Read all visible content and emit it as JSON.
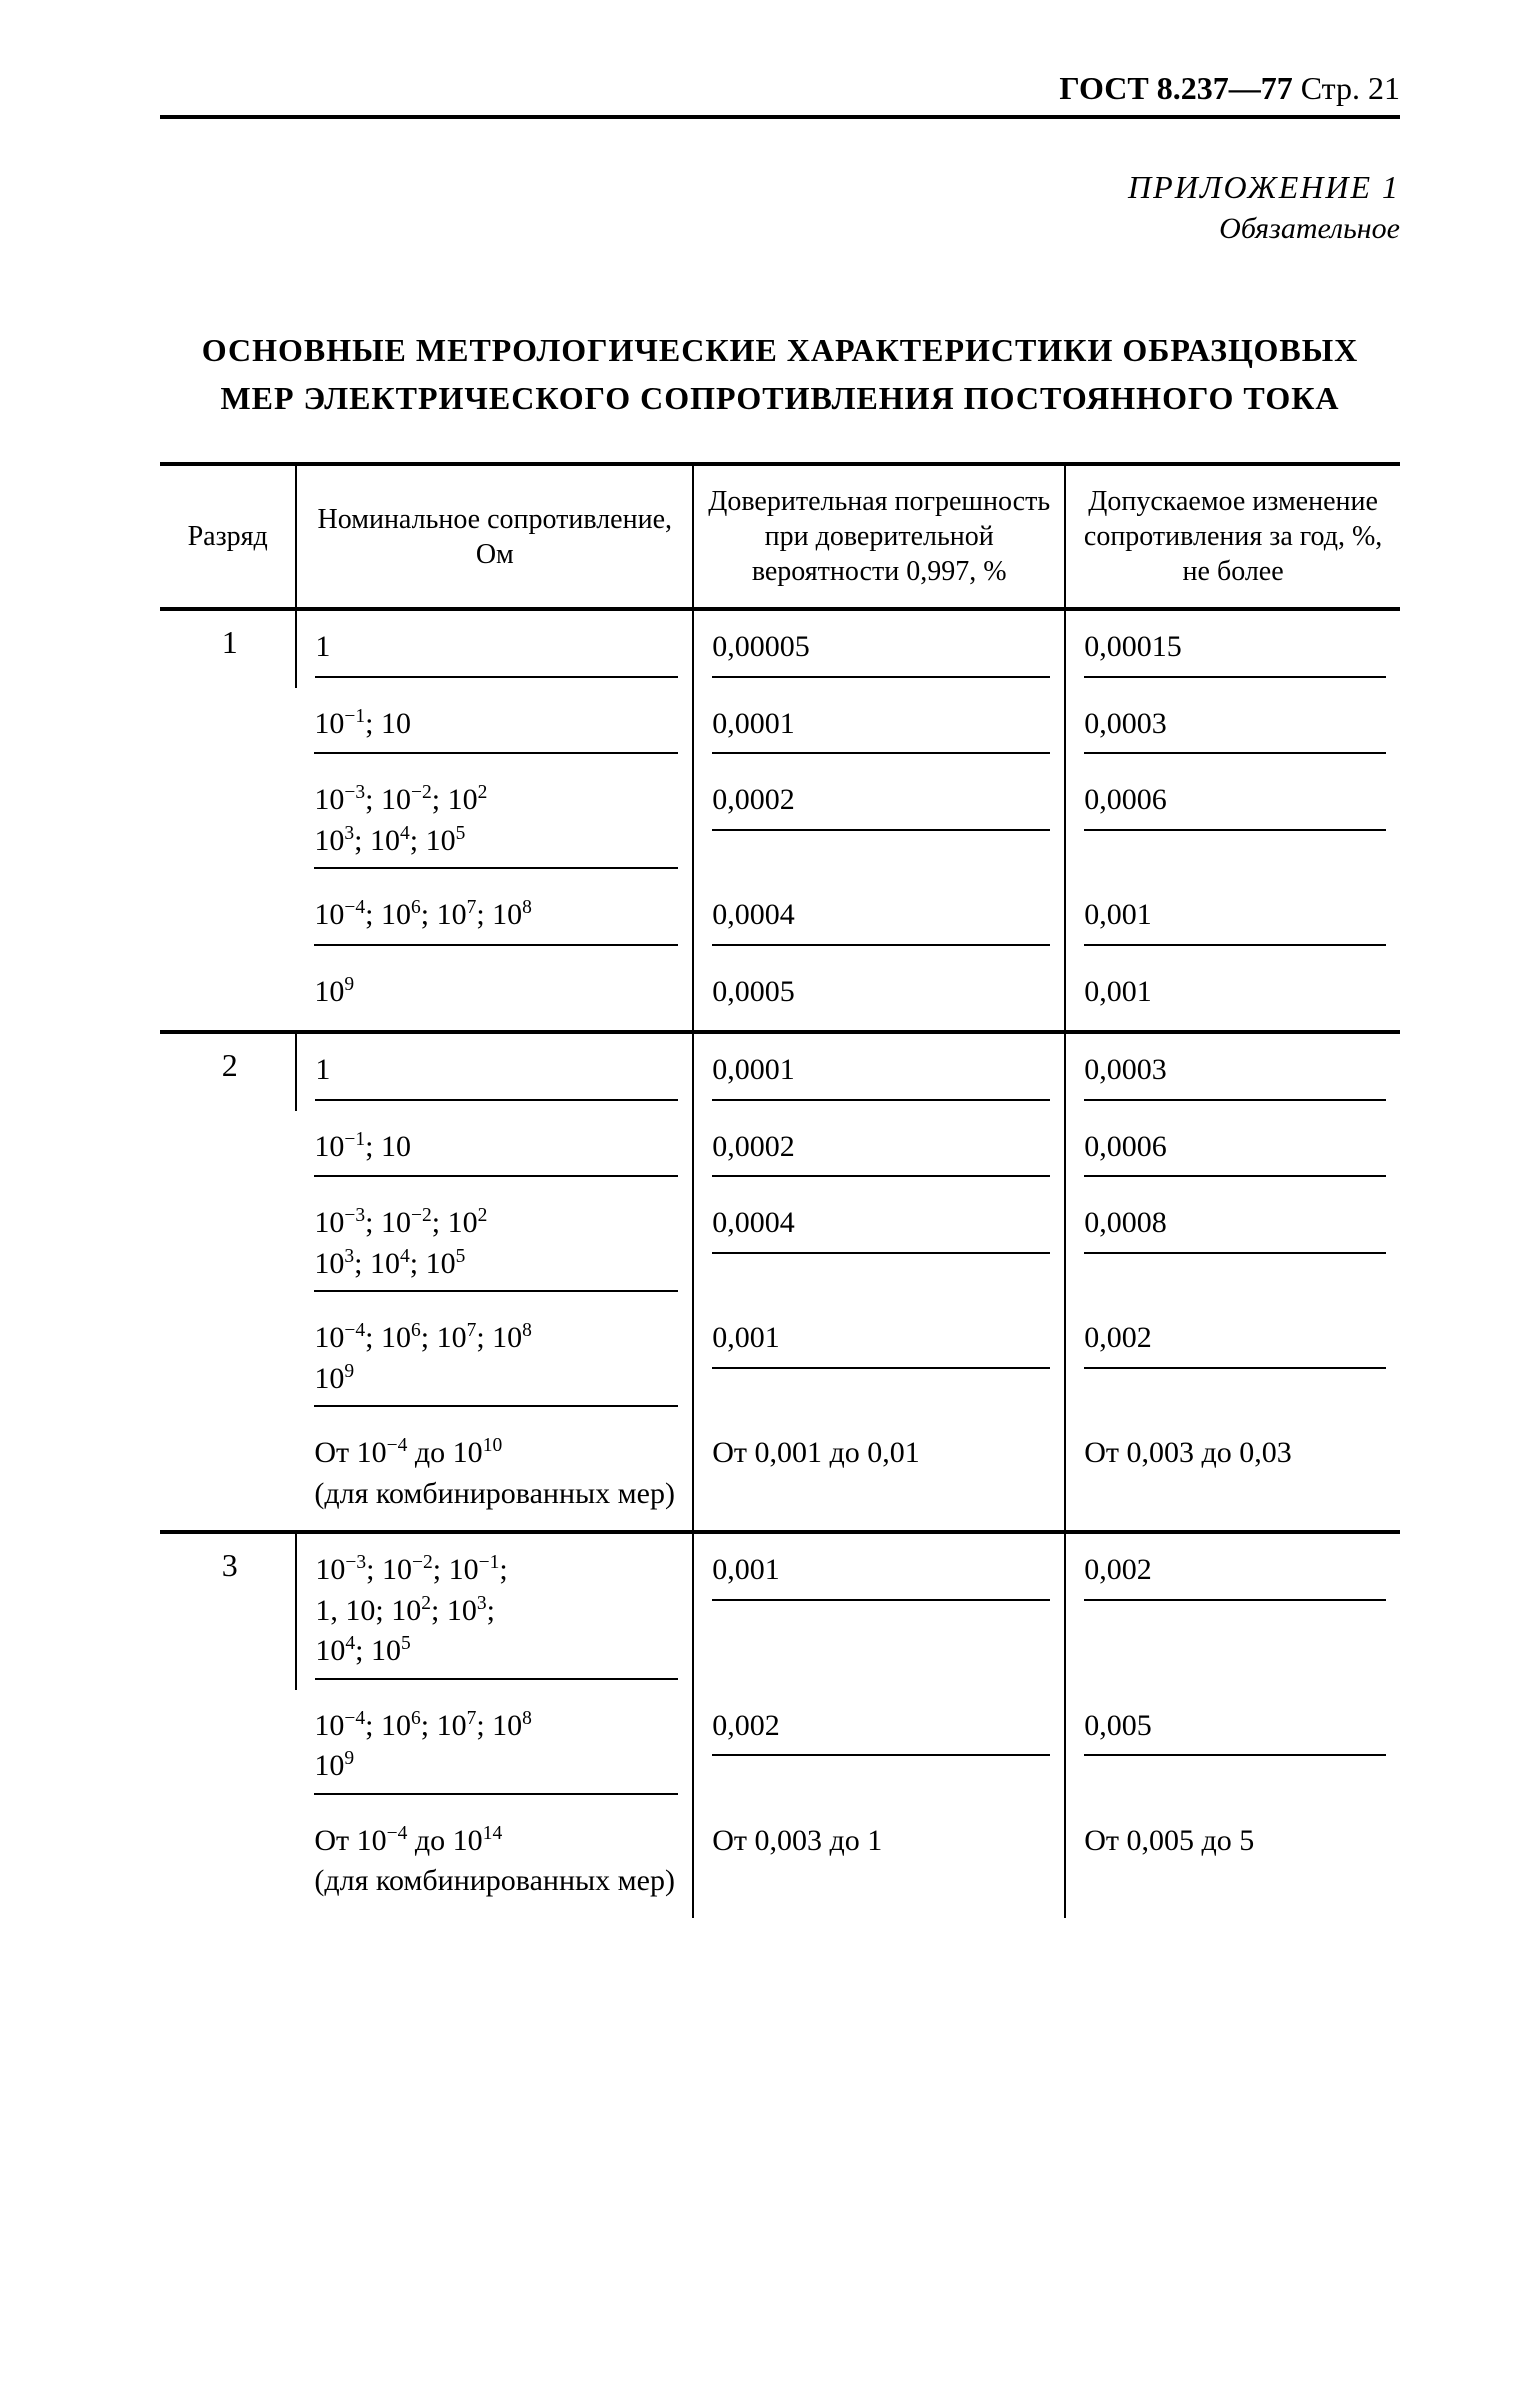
{
  "header": {
    "standard": "ГОСТ 8.237—77",
    "page_label": "Стр. 21"
  },
  "appendix": {
    "title": "ПРИЛОЖЕНИЕ 1",
    "subtitle": "Обязательное"
  },
  "section_title": "ОСНОВНЫЕ МЕТРОЛОГИЧЕСКИЕ ХАРАКТЕРИСТИКИ ОБРАЗЦОВЫХ МЕР ЭЛЕКТРИЧЕСКОГО СОПРОТИВЛЕНИЯ ПОСТОЯННОГО ТОКА",
  "table": {
    "columns": {
      "c1": "Разряд",
      "c2": "Номинальное сопротивление, Ом",
      "c3": "Доверительная погрешность при доверительной вероятности 0,997, %",
      "c4": "Допускаемое изменение сопротивления за год, %, не более"
    },
    "col_widths_pct": [
      11,
      32,
      30,
      27
    ],
    "border_color": "#000000",
    "groups": [
      {
        "rank": "1",
        "rows": [
          {
            "nominal_html": "1",
            "err": "0,00005",
            "drift": "0,00015",
            "underline": true
          },
          {
            "nominal_html": "10<sup>−1</sup>; 10",
            "err": "0,0001",
            "drift": "0,0003",
            "underline": true
          },
          {
            "nominal_html": "10<sup>−3</sup>; 10<sup>−2</sup>; 10<sup>2</sup><br>10<sup>3</sup>; 10<sup>4</sup>; 10<sup>5</sup>",
            "err": "0,0002",
            "drift": "0,0006",
            "underline": true
          },
          {
            "nominal_html": "10<sup>−4</sup>; 10<sup>6</sup>; 10<sup>7</sup>; 10<sup>8</sup>",
            "err": "0,0004",
            "drift": "0,001",
            "underline": true
          },
          {
            "nominal_html": "10<sup>9</sup>",
            "err": "0,0005",
            "drift": "0,001",
            "underline": false
          }
        ]
      },
      {
        "rank": "2",
        "rows": [
          {
            "nominal_html": "1",
            "err": "0,0001",
            "drift": "0,0003",
            "underline": true
          },
          {
            "nominal_html": "10<sup>−1</sup>; 10",
            "err": "0,0002",
            "drift": "0,0006",
            "underline": true
          },
          {
            "nominal_html": "10<sup>−3</sup>; 10<sup>−2</sup>; 10<sup>2</sup><br>10<sup>3</sup>; 10<sup>4</sup>; 10<sup>5</sup>",
            "err": "0,0004",
            "drift": "0,0008",
            "underline": true
          },
          {
            "nominal_html": "10<sup>−4</sup>; 10<sup>6</sup>; 10<sup>7</sup>; 10<sup>8</sup><br>10<sup>9</sup>",
            "err": "0,001",
            "drift": "0,002",
            "underline": true
          },
          {
            "nominal_html": "От 10<sup>−4</sup> до 10<sup>10</sup><br>(для комбинированных мер)",
            "err": "От 0,001 до 0,01",
            "drift": "От 0,003 до 0,03",
            "underline": false
          }
        ]
      },
      {
        "rank": "3",
        "rows": [
          {
            "nominal_html": "10<sup>−3</sup>; 10<sup>−2</sup>; 10<sup>−1</sup>;<br>1, 10; 10<sup>2</sup>; 10<sup>3</sup>;<br>10<sup>4</sup>; 10<sup>5</sup>",
            "err": "0,001",
            "drift": "0,002",
            "underline": true
          },
          {
            "nominal_html": "10<sup>−4</sup>; 10<sup>6</sup>; 10<sup>7</sup>; 10<sup>8</sup><br>10<sup>9</sup>",
            "err": "0,002",
            "drift": "0,005",
            "underline": true
          },
          {
            "nominal_html": "От 10<sup>−4</sup> до 10<sup>14</sup><br>(для комбинированных мер)",
            "err": "От 0,003 до 1",
            "drift": "От 0,005 до 5",
            "underline": false
          }
        ]
      }
    ]
  }
}
